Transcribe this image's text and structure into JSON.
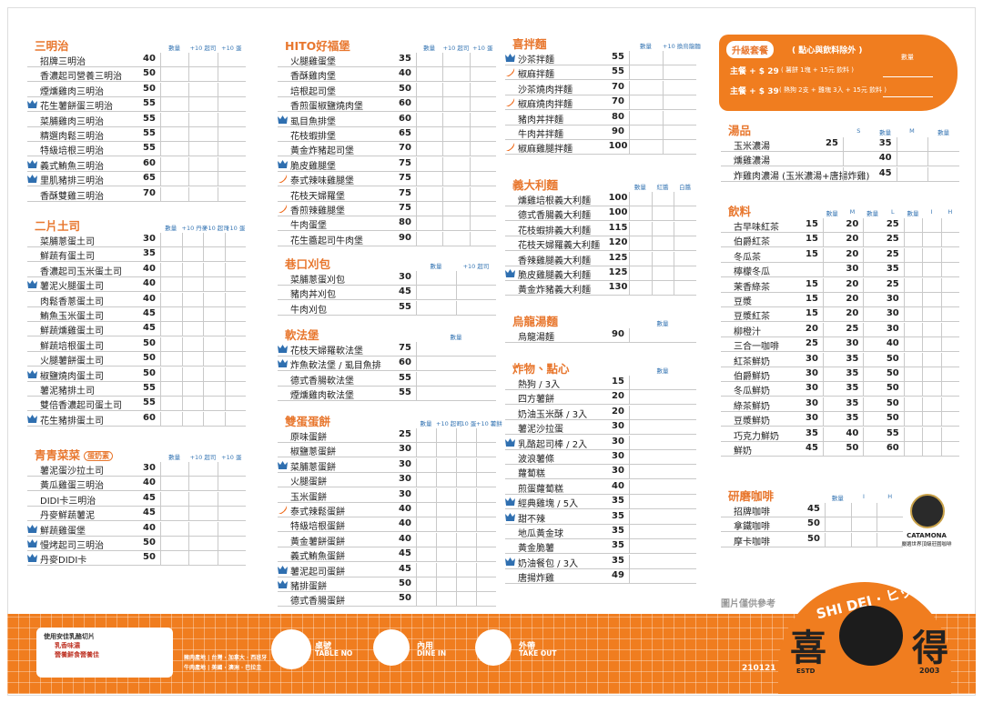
{
  "sections": [
    {
      "title": "三明治",
      "headers": [
        "數量",
        "+10 起司",
        "+10 蛋"
      ],
      "items": [
        {
          "name": "招牌三明治",
          "price": 40
        },
        {
          "name": "香濃起司營養三明治",
          "price": 50
        },
        {
          "name": "煙燻雞肉三明治",
          "price": 50
        },
        {
          "name": "花生薯餅蛋三明治",
          "price": 55,
          "icon": "crown"
        },
        {
          "name": "菜脯雞肉三明治",
          "price": 55
        },
        {
          "name": "精選肉鬆三明治",
          "price": 55
        },
        {
          "name": "特級培根三明治",
          "price": 55
        },
        {
          "name": "義式鮪魚三明治",
          "price": 60,
          "icon": "crown"
        },
        {
          "name": "里肌豬排三明治",
          "price": 65,
          "icon": "crown"
        },
        {
          "name": "香酥雙雞三明治",
          "price": 70
        }
      ]
    },
    {
      "title": "二片土司",
      "headers": [
        "數量",
        "+10 丹麥",
        "+10 起司",
        "+10 蛋"
      ],
      "items": [
        {
          "name": "菜脯蔥蛋土司",
          "price": 30
        },
        {
          "name": "鮮蔬有蛋土司",
          "price": 35
        },
        {
          "name": "香濃起司玉米蛋土司",
          "price": 40
        },
        {
          "name": "薯泥火腿蛋土司",
          "price": 40,
          "icon": "crown"
        },
        {
          "name": "肉鬆香蔥蛋土司",
          "price": 40
        },
        {
          "name": "鮪魚玉米蛋土司",
          "price": 45
        },
        {
          "name": "鮮蔬燻雞蛋土司",
          "price": 45
        },
        {
          "name": "鮮蔬培根蛋土司",
          "price": 50
        },
        {
          "name": "火腿薯餅蛋土司",
          "price": 50
        },
        {
          "name": "椒鹽燒肉蛋土司",
          "price": 50,
          "icon": "crown"
        },
        {
          "name": "薯泥豬排土司",
          "price": 55
        },
        {
          "name": "雙倍香濃起司蛋土司",
          "price": 55
        },
        {
          "name": "花生豬排蛋土司",
          "price": 60,
          "icon": "crown"
        }
      ]
    },
    {
      "title": "青青菜菜",
      "tag": "蛋奶素",
      "headers": [
        "數量",
        "+10 起司",
        "+10 蛋"
      ],
      "items": [
        {
          "name": "薯泥蛋沙拉土司",
          "price": 30
        },
        {
          "name": "黃瓜雞蛋三明治",
          "price": 40
        },
        {
          "name": "DIDI卡三明治",
          "price": 45
        },
        {
          "name": "丹麥鮮蔬薯泥",
          "price": 45
        },
        {
          "name": "鮮蔬雞蛋堡",
          "price": 40,
          "icon": "crown"
        },
        {
          "name": "慢烤起司三明治",
          "price": 50,
          "icon": "crown"
        },
        {
          "name": "丹麥DIDI卡",
          "price": 50,
          "icon": "crown"
        }
      ]
    },
    {
      "title": "HITO好福堡",
      "headers": [
        "數量",
        "+10 起司",
        "+10 蛋"
      ],
      "items": [
        {
          "name": "火腿雞蛋堡",
          "price": 35
        },
        {
          "name": "香酥雞肉堡",
          "price": 40
        },
        {
          "name": "培根起司堡",
          "price": 50
        },
        {
          "name": "香煎蛋椒鹽燒肉堡",
          "price": 60
        },
        {
          "name": "虱目魚排堡",
          "price": 60,
          "icon": "crown"
        },
        {
          "name": "花枝蝦排堡",
          "price": 65
        },
        {
          "name": "黃金炸豬起司堡",
          "price": 70
        },
        {
          "name": "脆皮雞腿堡",
          "price": 75,
          "icon": "crown"
        },
        {
          "name": "泰式辣味雞腿堡",
          "price": 75,
          "icon": "chili"
        },
        {
          "name": "花枝天婦羅堡",
          "price": 75
        },
        {
          "name": "香煎辣雞腿堡",
          "price": 75,
          "icon": "chili"
        },
        {
          "name": "牛肉蛋堡",
          "price": 80
        },
        {
          "name": "花生醬起司牛肉堡",
          "price": 90
        }
      ]
    },
    {
      "title": "巷口刈包",
      "headers": [
        "數量",
        "+10 起司"
      ],
      "items": [
        {
          "name": "菜脯蔥蛋刈包",
          "price": 30
        },
        {
          "name": "豬肉丼刈包",
          "price": 45
        },
        {
          "name": "牛肉刈包",
          "price": 55
        }
      ]
    },
    {
      "title": "軟法堡",
      "headers": [
        "數量"
      ],
      "items": [
        {
          "name": "花枝天婦羅軟法堡",
          "price": 75,
          "icon": "crown"
        },
        {
          "name": "炸魚軟法堡 / 虱目魚排",
          "price": 60,
          "icon": "crown"
        },
        {
          "name": "德式香腸軟法堡",
          "price": 55
        },
        {
          "name": "煙燻雞肉軟法堡",
          "price": 55
        }
      ]
    },
    {
      "title": "雙蛋蛋餅",
      "headers": [
        "數量",
        "+10 起司",
        "+10 蛋",
        "+10 薯餅"
      ],
      "items": [
        {
          "name": "原味蛋餅",
          "price": 25
        },
        {
          "name": "椒鹽蔥蛋餅",
          "price": 30
        },
        {
          "name": "菜脯蔥蛋餅",
          "price": 30,
          "icon": "crown"
        },
        {
          "name": "火腿蛋餅",
          "price": 30
        },
        {
          "name": "玉米蛋餅",
          "price": 30
        },
        {
          "name": "泰式辣鬆蛋餅",
          "price": 40,
          "icon": "chili"
        },
        {
          "name": "特級培根蛋餅",
          "price": 40
        },
        {
          "name": "黃金薯餅蛋餅",
          "price": 40
        },
        {
          "name": "義式鮪魚蛋餅",
          "price": 45
        },
        {
          "name": "薯泥起司蛋餅",
          "price": 45,
          "icon": "crown"
        },
        {
          "name": "豬排蛋餅",
          "price": 50,
          "icon": "crown"
        },
        {
          "name": "德式香腸蛋餅",
          "price": 50
        }
      ]
    },
    {
      "title": "喜拌麵",
      "headers": [
        "數量",
        "+10 換烏龍麵"
      ],
      "items": [
        {
          "name": "沙茶拌麵",
          "price": 55,
          "icon": "crown"
        },
        {
          "name": "椒麻拌麵",
          "price": 55,
          "icon": "chili"
        },
        {
          "name": "沙茶燒肉拌麵",
          "price": 70
        },
        {
          "name": "椒麻燒肉拌麵",
          "price": 70,
          "icon": "chili"
        },
        {
          "name": "豬肉丼拌麵",
          "price": 80
        },
        {
          "name": "牛肉丼拌麵",
          "price": 90
        },
        {
          "name": "椒麻雞腿拌麵",
          "price": 100,
          "icon": "chili"
        }
      ]
    },
    {
      "title": "義大利麵",
      "headers": [
        "數量",
        "紅醬",
        "白醬"
      ],
      "items": [
        {
          "name": "燻雞培根義大利麵",
          "price": 100
        },
        {
          "name": "德式香腸義大利麵",
          "price": 100
        },
        {
          "name": "花枝蝦排義大利麵",
          "price": 115
        },
        {
          "name": "花枝天婦羅義大利麵",
          "price": 120
        },
        {
          "name": "香辣雞腿義大利麵",
          "price": 125
        },
        {
          "name": "脆皮雞腿義大利麵",
          "price": 125,
          "icon": "crown"
        },
        {
          "name": "黃金炸豬義大利麵",
          "price": 130
        }
      ]
    },
    {
      "title": "烏龍湯麵",
      "headers": [
        "數量"
      ],
      "items": [
        {
          "name": "烏龍湯麵",
          "price": 90
        }
      ]
    },
    {
      "title": "炸物、點心",
      "headers": [
        "數量"
      ],
      "items": [
        {
          "name": "熱狗 / 3入",
          "price": 15
        },
        {
          "name": "四方薯餅",
          "price": 20
        },
        {
          "name": "奶油玉米酥 / 3入",
          "price": 20
        },
        {
          "name": "薯泥沙拉蛋",
          "price": 30
        },
        {
          "name": "乳酪起司棒 / 2入",
          "price": 30,
          "icon": "crown"
        },
        {
          "name": "波浪薯條",
          "price": 30
        },
        {
          "name": "蘿蔔糕",
          "price": 30
        },
        {
          "name": "煎蛋蘿蔔糕",
          "price": 40
        },
        {
          "name": "經典雞塊 / 5入",
          "price": 35,
          "icon": "crown"
        },
        {
          "name": "甜不辣",
          "price": 35,
          "icon": "crown"
        },
        {
          "name": "地瓜黃金球",
          "price": 35
        },
        {
          "name": "黃金脆薯",
          "price": 35
        },
        {
          "name": "奶油餐包 / 3入",
          "price": 35,
          "icon": "crown"
        },
        {
          "name": "唐揚炸雞",
          "price": 49
        }
      ]
    },
    {
      "title": "湯品",
      "headers": [
        "S",
        "數量",
        "M",
        "數量"
      ],
      "items": [
        {
          "name": "玉米濃湯",
          "prices": [
            25,
            35
          ]
        },
        {
          "name": "燻雞濃湯",
          "prices": [
            null,
            40
          ]
        },
        {
          "name": "炸雞肉濃湯 (玉米濃湯+唐揚炸雞)",
          "prices": [
            null,
            45
          ]
        }
      ]
    },
    {
      "title": "飲料",
      "headers": [
        "數量",
        "M",
        "數量",
        "L",
        "數量",
        "I",
        "H"
      ],
      "items": [
        {
          "name": "古早味紅茶",
          "prices": [
            15,
            20,
            25
          ]
        },
        {
          "name": "伯爵紅茶",
          "prices": [
            15,
            20,
            25
          ]
        },
        {
          "name": "冬瓜茶",
          "prices": [
            15,
            20,
            25
          ]
        },
        {
          "name": "檸檬冬瓜",
          "prices": [
            null,
            30,
            35
          ]
        },
        {
          "name": "茉香綠茶",
          "prices": [
            15,
            20,
            25
          ]
        },
        {
          "name": "豆漿",
          "prices": [
            15,
            20,
            30
          ]
        },
        {
          "name": "豆漿紅茶",
          "prices": [
            15,
            20,
            30
          ]
        },
        {
          "name": "柳橙汁",
          "prices": [
            20,
            25,
            30
          ]
        },
        {
          "name": "三合一咖啡",
          "prices": [
            25,
            30,
            40
          ]
        },
        {
          "name": "紅茶鮮奶",
          "prices": [
            30,
            35,
            50
          ]
        },
        {
          "name": "伯爵鮮奶",
          "prices": [
            30,
            35,
            50
          ]
        },
        {
          "name": "冬瓜鮮奶",
          "prices": [
            30,
            35,
            50
          ]
        },
        {
          "name": "綠茶鮮奶",
          "prices": [
            30,
            35,
            50
          ]
        },
        {
          "name": "豆漿鮮奶",
          "prices": [
            30,
            35,
            50
          ]
        },
        {
          "name": "巧克力鮮奶",
          "prices": [
            35,
            40,
            55
          ]
        },
        {
          "name": "鮮奶",
          "prices": [
            45,
            50,
            60
          ]
        }
      ]
    },
    {
      "title": "研磨咖啡",
      "headers": [
        "數量",
        "I",
        "H"
      ],
      "items": [
        {
          "name": "招牌咖啡",
          "price": 45
        },
        {
          "name": "拿鐵咖啡",
          "price": 50
        },
        {
          "name": "摩卡咖啡",
          "price": 50
        }
      ]
    }
  ],
  "upgrade": {
    "title": "升級套餐",
    "note": "( 點心與飲料除外 )",
    "qty": "數量",
    "options": [
      {
        "text": "主餐 + $ 29",
        "detail": "( 薯餅 1塊 + 15元 飲料 )"
      },
      {
        "text": "主餐 + $ 39",
        "detail": "( 熱狗 2支 + 雞塊 3入 + 15元 飲料 )"
      }
    ]
  },
  "coffee_brand": {
    "name": "CATAMONA",
    "slogan": "嚴選世界頂級莊園咖啡"
  },
  "disclaimer": "圖片僅供參考",
  "footer": {
    "promo": [
      "使用安佳乳酪切片",
      "乳香味濃",
      "營養鮮食營養佳"
    ],
    "origins": [
      "豬肉產地 | 台灣 · 加拿大 · 西班牙",
      "牛肉產地 | 美國 · 澳洲 · 巴拉圭"
    ],
    "order_types": [
      {
        "label": "桌號",
        "en": "TABLE NO"
      },
      {
        "label": "內用",
        "en": "DINE IN"
      },
      {
        "label": "外帶",
        "en": "TAKE OUT"
      }
    ],
    "brand": {
      "roman": "SHI DEI · ヒッディ",
      "left": "喜",
      "right": "得",
      "estd": "ESTD",
      "year": "2003",
      "code": "210121"
    }
  }
}
